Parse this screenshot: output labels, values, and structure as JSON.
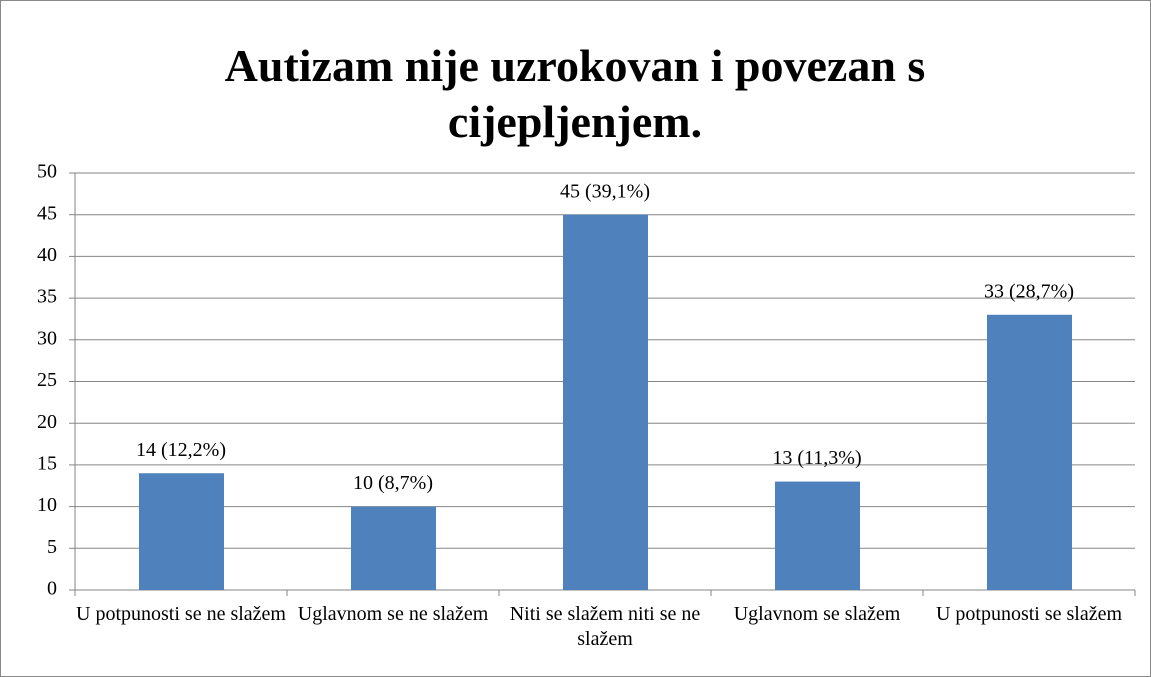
{
  "chart_data": {
    "type": "bar",
    "title": "Autizam nije uzrokovan i povezan s cijepljenjem.",
    "categories": [
      "U potpunosti se ne slažem",
      "Uglavnom se ne slažem",
      "Niti se slažem niti se ne slažem",
      "Uglavnom se slažem",
      "U potpunosti se slažem"
    ],
    "values": [
      14,
      10,
      45,
      13,
      33
    ],
    "value_labels": [
      "14 (12,2%)",
      "10 (8,7%)",
      "45 (39,1%)",
      "13 (11,3%)",
      "33 (28,7%)"
    ],
    "color": "#4f81bd",
    "ylim": [
      0,
      50
    ],
    "yticks": [
      0,
      5,
      10,
      15,
      20,
      25,
      30,
      35,
      40,
      45,
      50
    ],
    "grid": true
  }
}
